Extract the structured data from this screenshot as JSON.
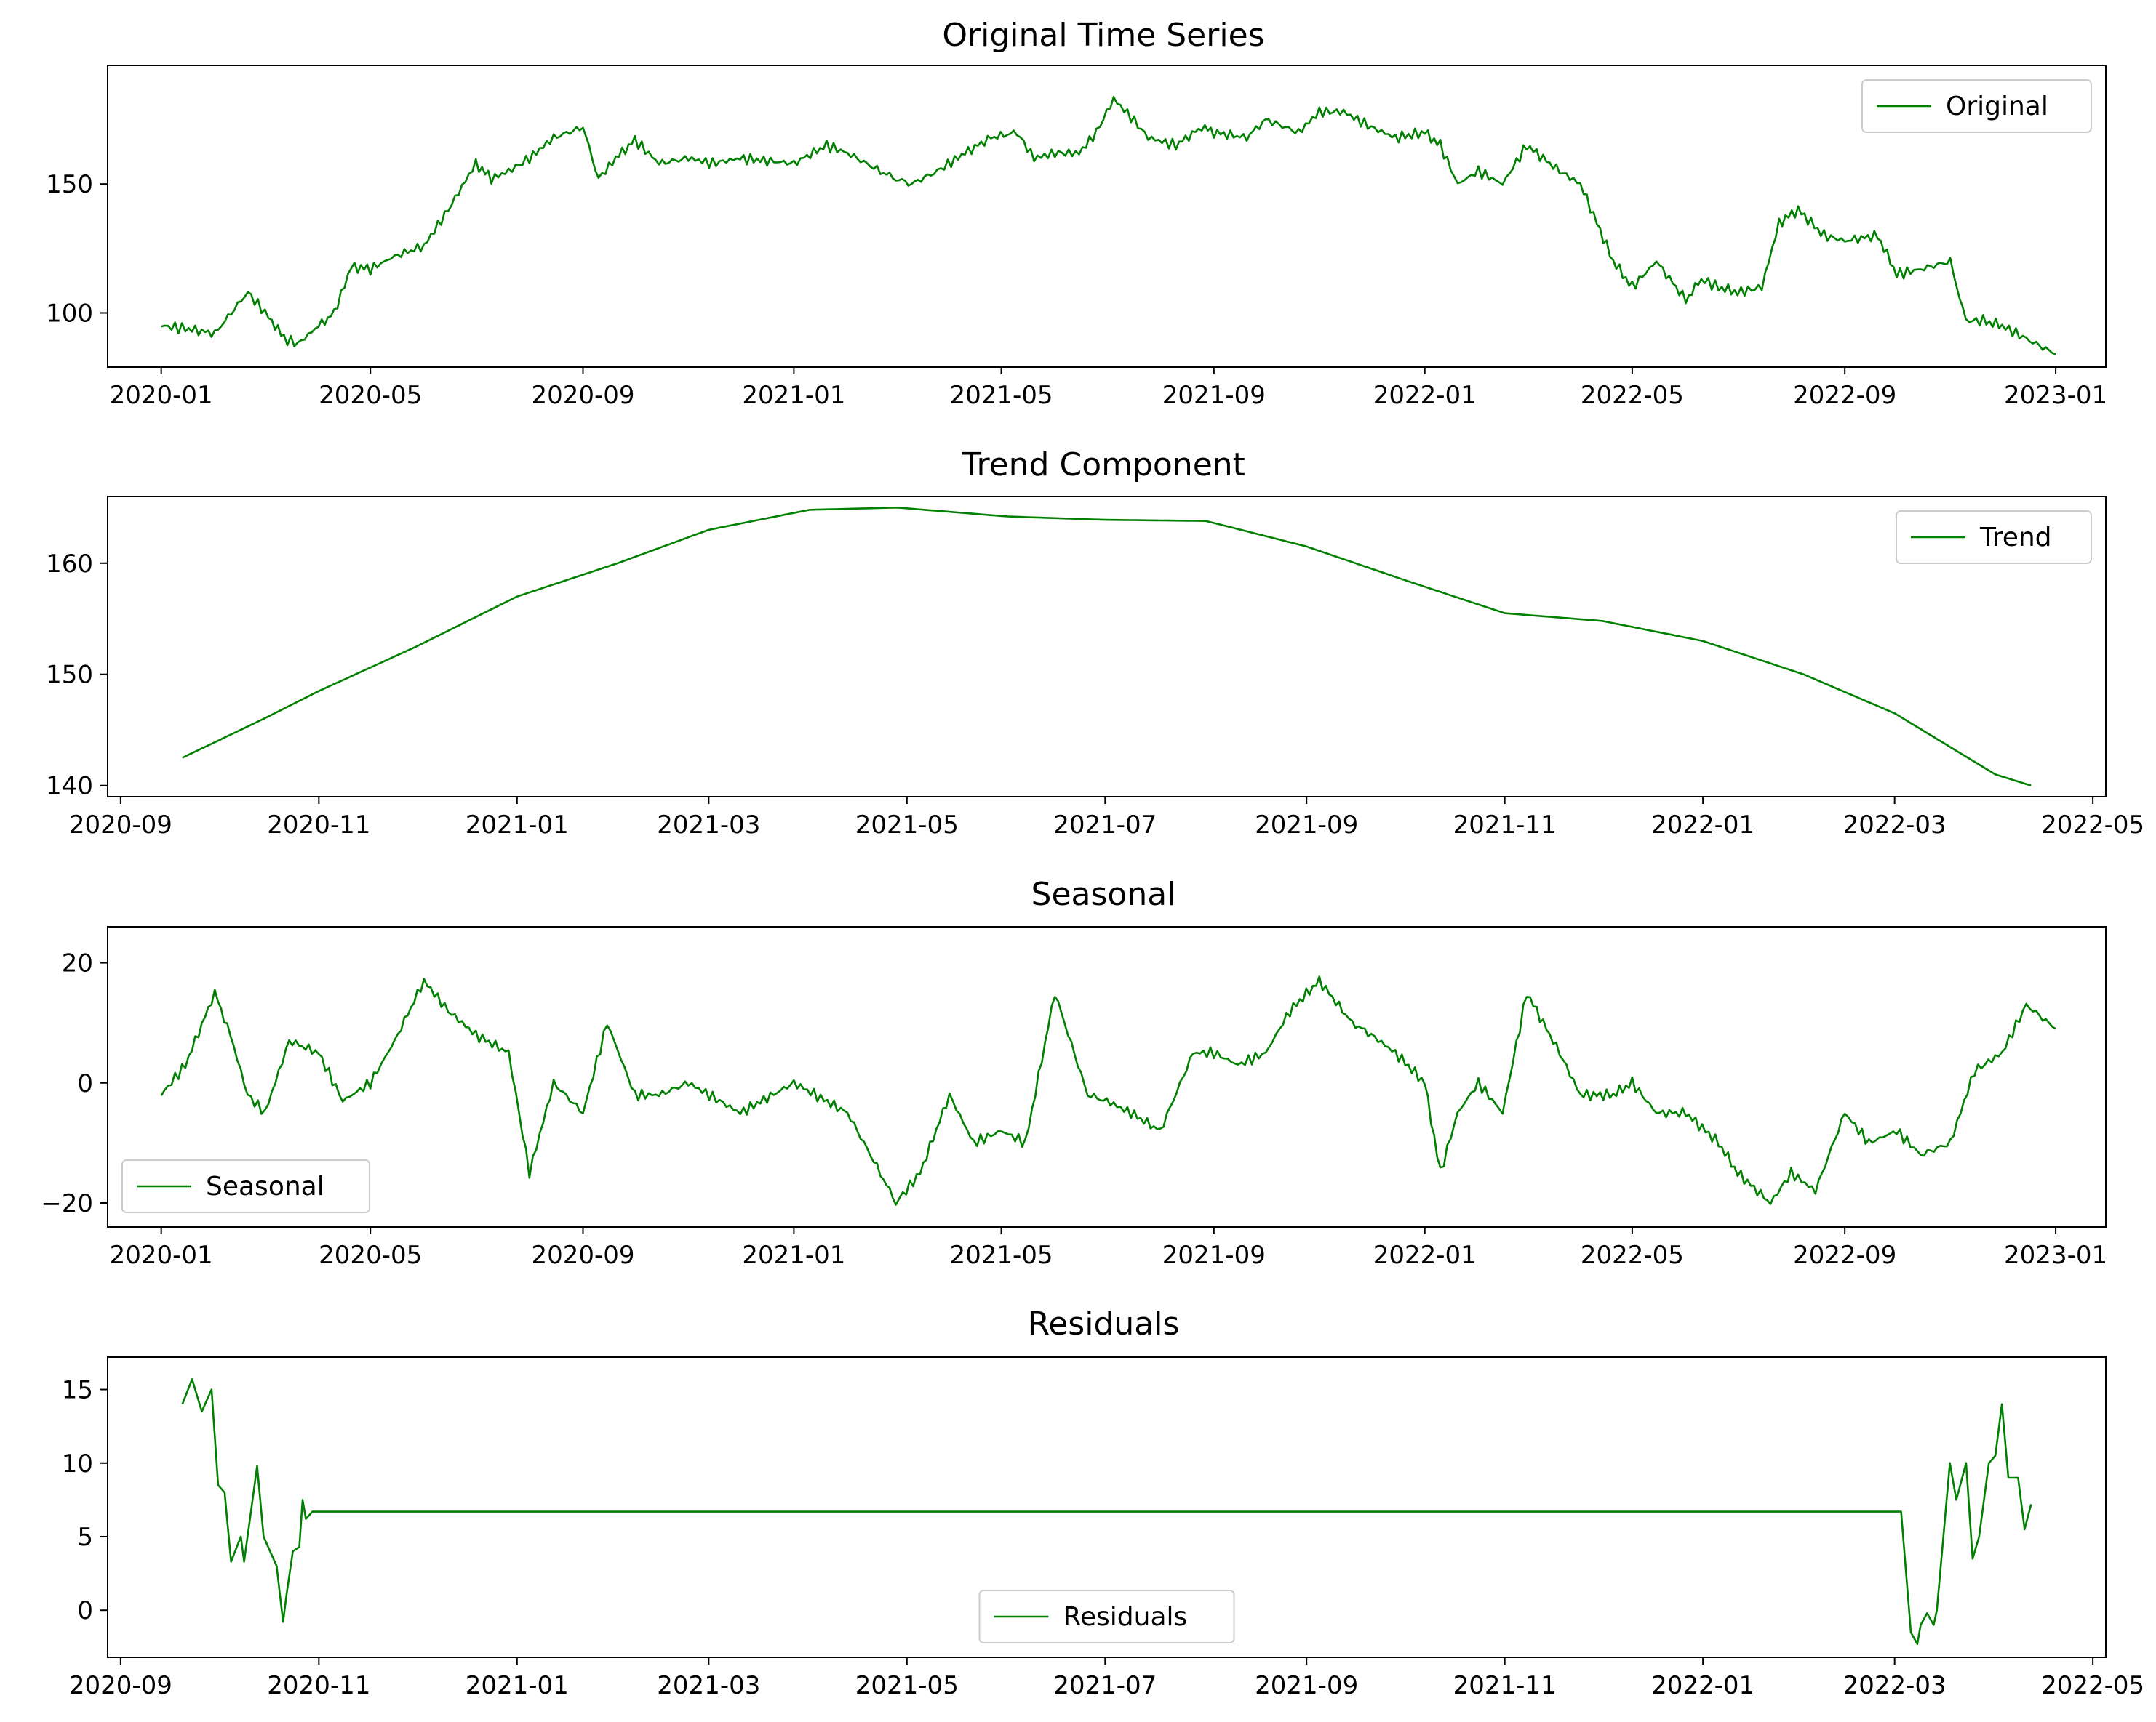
{
  "line_color": "#008000",
  "chart_data": [
    {
      "type": "line",
      "title": "Original Time Series",
      "legend": {
        "label": "Original",
        "placement": "upper-right"
      },
      "x_range": [
        "2019-12-01",
        "2023-01-30"
      ],
      "ylim": [
        79,
        196
      ],
      "x_ticks": [
        "2020-01",
        "2020-05",
        "2020-09",
        "2021-01",
        "2021-05",
        "2021-09",
        "2022-01",
        "2022-05",
        "2022-09",
        "2023-01"
      ],
      "y_ticks": [
        100,
        150
      ],
      "series": [
        {
          "name": "Original",
          "x": [
            "2020-01-01",
            "2020-01-15",
            "2020-02-01",
            "2020-02-20",
            "2020-03-05",
            "2020-03-12",
            "2020-03-20",
            "2020-04-01",
            "2020-04-10",
            "2020-04-20",
            "2020-05-01",
            "2020-05-15",
            "2020-06-01",
            "2020-06-15",
            "2020-07-01",
            "2020-07-10",
            "2020-07-20",
            "2020-08-01",
            "2020-08-15",
            "2020-09-01",
            "2020-09-10",
            "2020-09-20",
            "2020-10-01",
            "2020-10-15",
            "2020-11-01",
            "2020-11-15",
            "2020-12-01",
            "2021-01-01",
            "2021-01-20",
            "2021-02-01",
            "2021-02-20",
            "2021-03-01",
            "2021-03-10",
            "2021-03-25",
            "2021-04-10",
            "2021-04-25",
            "2021-05-10",
            "2021-05-20",
            "2021-06-01",
            "2021-06-15",
            "2021-06-25",
            "2021-07-05",
            "2021-07-15",
            "2021-07-25",
            "2021-08-10",
            "2021-08-25",
            "2021-09-01",
            "2021-09-20",
            "2021-10-01",
            "2021-10-20",
            "2021-11-01",
            "2021-11-15",
            "2021-12-01",
            "2021-12-15",
            "2022-01-01",
            "2022-01-10",
            "2022-01-20",
            "2022-02-01",
            "2022-02-15",
            "2022-03-01",
            "2022-03-20",
            "2022-04-01",
            "2022-04-20",
            "2022-05-01",
            "2022-05-15",
            "2022-06-01",
            "2022-06-10",
            "2022-06-20",
            "2022-07-01",
            "2022-07-15",
            "2022-07-25",
            "2022-08-05",
            "2022-08-20",
            "2022-09-01",
            "2022-09-20",
            "2022-10-01",
            "2022-10-15",
            "2022-11-01",
            "2022-11-10",
            "2022-11-20",
            "2022-12-01",
            "2022-12-15",
            "2023-01-01"
          ],
          "values": [
            95,
            94,
            92,
            108,
            97,
            90,
            88,
            95,
            100,
            118,
            117,
            122,
            126,
            140,
            158,
            152,
            155,
            160,
            168,
            172,
            152,
            160,
            167,
            158,
            160,
            158,
            160,
            158,
            165,
            162,
            155,
            152,
            150,
            155,
            162,
            168,
            170,
            160,
            162,
            162,
            170,
            183,
            176,
            168,
            165,
            172,
            170,
            168,
            175,
            170,
            178,
            178,
            172,
            168,
            170,
            165,
            150,
            155,
            150,
            165,
            155,
            150,
            120,
            110,
            120,
            105,
            113,
            110,
            108,
            110,
            135,
            140,
            130,
            128,
            130,
            115,
            117,
            120,
            97,
            97,
            95,
            90,
            84
          ]
        }
      ]
    },
    {
      "type": "line",
      "title": "Trend Component",
      "legend": {
        "label": "Trend",
        "placement": "upper-right"
      },
      "x_range": [
        "2020-08-28",
        "2022-05-05"
      ],
      "ylim": [
        139,
        166
      ],
      "x_ticks": [
        "2020-09",
        "2020-11",
        "2021-01",
        "2021-03",
        "2021-05",
        "2021-07",
        "2021-09",
        "2021-11",
        "2022-01",
        "2022-03",
        "2022-05"
      ],
      "y_ticks": [
        140,
        150,
        160
      ],
      "series": [
        {
          "name": "Trend",
          "x": [
            "2020-09-20",
            "2020-10-15",
            "2020-11-01",
            "2020-12-01",
            "2021-01-01",
            "2021-02-01",
            "2021-03-01",
            "2021-04-01",
            "2021-04-28",
            "2021-06-01",
            "2021-07-01",
            "2021-08-01",
            "2021-09-01",
            "2021-10-01",
            "2021-11-01",
            "2021-12-01",
            "2022-01-01",
            "2022-02-01",
            "2022-03-01",
            "2022-04-01",
            "2022-04-12"
          ],
          "values": [
            142.5,
            146,
            148.5,
            152.5,
            157,
            160,
            163,
            164.8,
            165,
            164.2,
            163.9,
            163.8,
            161.5,
            158.5,
            155.5,
            154.8,
            153,
            150,
            146.5,
            141,
            140
          ]
        }
      ]
    },
    {
      "type": "line",
      "title": "Seasonal",
      "legend": {
        "label": "Seasonal",
        "placement": "lower-left"
      },
      "x_range": [
        "2019-12-01",
        "2023-01-30"
      ],
      "ylim": [
        -24,
        26
      ],
      "x_ticks": [
        "2020-01",
        "2020-05",
        "2020-09",
        "2021-01",
        "2021-05",
        "2021-09",
        "2022-01",
        "2022-05",
        "2022-09",
        "2023-01"
      ],
      "y_ticks": [
        -20,
        0,
        20
      ],
      "series": [
        {
          "name": "Seasonal",
          "x": [
            "2020-01-01",
            "2020-01-15",
            "2020-02-01",
            "2020-02-10",
            "2020-02-20",
            "2020-03-01",
            "2020-03-15",
            "2020-04-01",
            "2020-04-15",
            "2020-05-01",
            "2020-05-15",
            "2020-06-01",
            "2020-06-15",
            "2020-07-01",
            "2020-07-20",
            "2020-08-01",
            "2020-08-15",
            "2020-09-01",
            "2020-09-15",
            "2020-10-01",
            "2020-10-15",
            "2020-11-01",
            "2020-12-01",
            "2021-01-01",
            "2021-02-01",
            "2021-02-20",
            "2021-03-01",
            "2021-03-15",
            "2021-04-01",
            "2021-04-15",
            "2021-05-01",
            "2021-05-15",
            "2021-06-01",
            "2021-06-20",
            "2021-07-01",
            "2021-07-15",
            "2021-08-01",
            "2021-08-20",
            "2021-09-01",
            "2021-09-15",
            "2021-10-01",
            "2021-10-15",
            "2021-11-01",
            "2021-11-20",
            "2021-12-01",
            "2021-12-15",
            "2022-01-01",
            "2022-01-10",
            "2022-01-20",
            "2022-02-01",
            "2022-02-15",
            "2022-03-01",
            "2022-03-20",
            "2022-04-01",
            "2022-04-20",
            "2022-05-01",
            "2022-05-15",
            "2022-06-01",
            "2022-06-20",
            "2022-07-01",
            "2022-07-20",
            "2022-08-01",
            "2022-08-15",
            "2022-09-01",
            "2022-09-15",
            "2022-10-01",
            "2022-10-15",
            "2022-11-01",
            "2022-11-15",
            "2022-12-01",
            "2022-12-15",
            "2023-01-01"
          ],
          "values": [
            -2,
            3,
            15,
            8,
            -2,
            -5,
            7,
            5,
            -3,
            0,
            7,
            17,
            12,
            8,
            5,
            -15,
            0,
            -5,
            10,
            -2,
            -2,
            0,
            -5,
            0,
            -5,
            -15,
            -20,
            -15,
            -2,
            -10,
            -8,
            -10,
            15,
            -2,
            -3,
            -5,
            -8,
            5,
            5,
            3,
            5,
            12,
            17,
            10,
            8,
            5,
            0,
            -15,
            -5,
            0,
            -5,
            15,
            5,
            -2,
            -2,
            0,
            -5,
            -5,
            -10,
            -15,
            -20,
            -15,
            -18,
            -5,
            -10,
            -8,
            -12,
            -10,
            2,
            5,
            13,
            9
          ]
        }
      ]
    },
    {
      "type": "line",
      "title": "Residuals",
      "legend": {
        "label": "Residuals",
        "placement": "lower-center"
      },
      "x_range": [
        "2020-08-28",
        "2022-05-05"
      ],
      "ylim": [
        -3.2,
        17.2
      ],
      "x_ticks": [
        "2020-09",
        "2020-11",
        "2021-01",
        "2021-03",
        "2021-05",
        "2021-07",
        "2021-09",
        "2021-11",
        "2022-01",
        "2022-03",
        "2022-05"
      ],
      "y_ticks": [
        0,
        5,
        10,
        15
      ],
      "series": [
        {
          "name": "Residuals",
          "x": [
            "2020-09-20",
            "2020-09-23",
            "2020-09-26",
            "2020-09-29",
            "2020-10-01",
            "2020-10-03",
            "2020-10-05",
            "2020-10-08",
            "2020-10-09",
            "2020-10-11",
            "2020-10-13",
            "2020-10-15",
            "2020-10-19",
            "2020-10-21",
            "2020-10-22",
            "2020-10-24",
            "2020-10-26",
            "2020-10-27",
            "2020-10-28",
            "2020-10-30",
            "2022-03-03",
            "2022-03-06",
            "2022-03-08",
            "2022-03-09",
            "2022-03-11",
            "2022-03-13",
            "2022-03-14",
            "2022-03-16",
            "2022-03-18",
            "2022-03-20",
            "2022-03-23",
            "2022-03-25",
            "2022-03-27",
            "2022-03-30",
            "2022-04-01",
            "2022-04-03",
            "2022-04-05",
            "2022-04-08",
            "2022-04-10",
            "2022-04-12"
          ],
          "values": [
            14,
            15.7,
            13.5,
            15,
            8.5,
            8,
            3.3,
            5,
            3.3,
            6.5,
            9.8,
            5,
            3,
            -0.8,
            1,
            4,
            4.3,
            7.5,
            6.2,
            6.7,
            6.7,
            -1.5,
            -2.3,
            -1,
            -0.2,
            -1,
            0,
            5,
            10,
            7.5,
            10,
            3.5,
            5,
            10,
            10.5,
            14,
            9,
            9,
            5.5,
            7.2
          ]
        }
      ]
    }
  ]
}
